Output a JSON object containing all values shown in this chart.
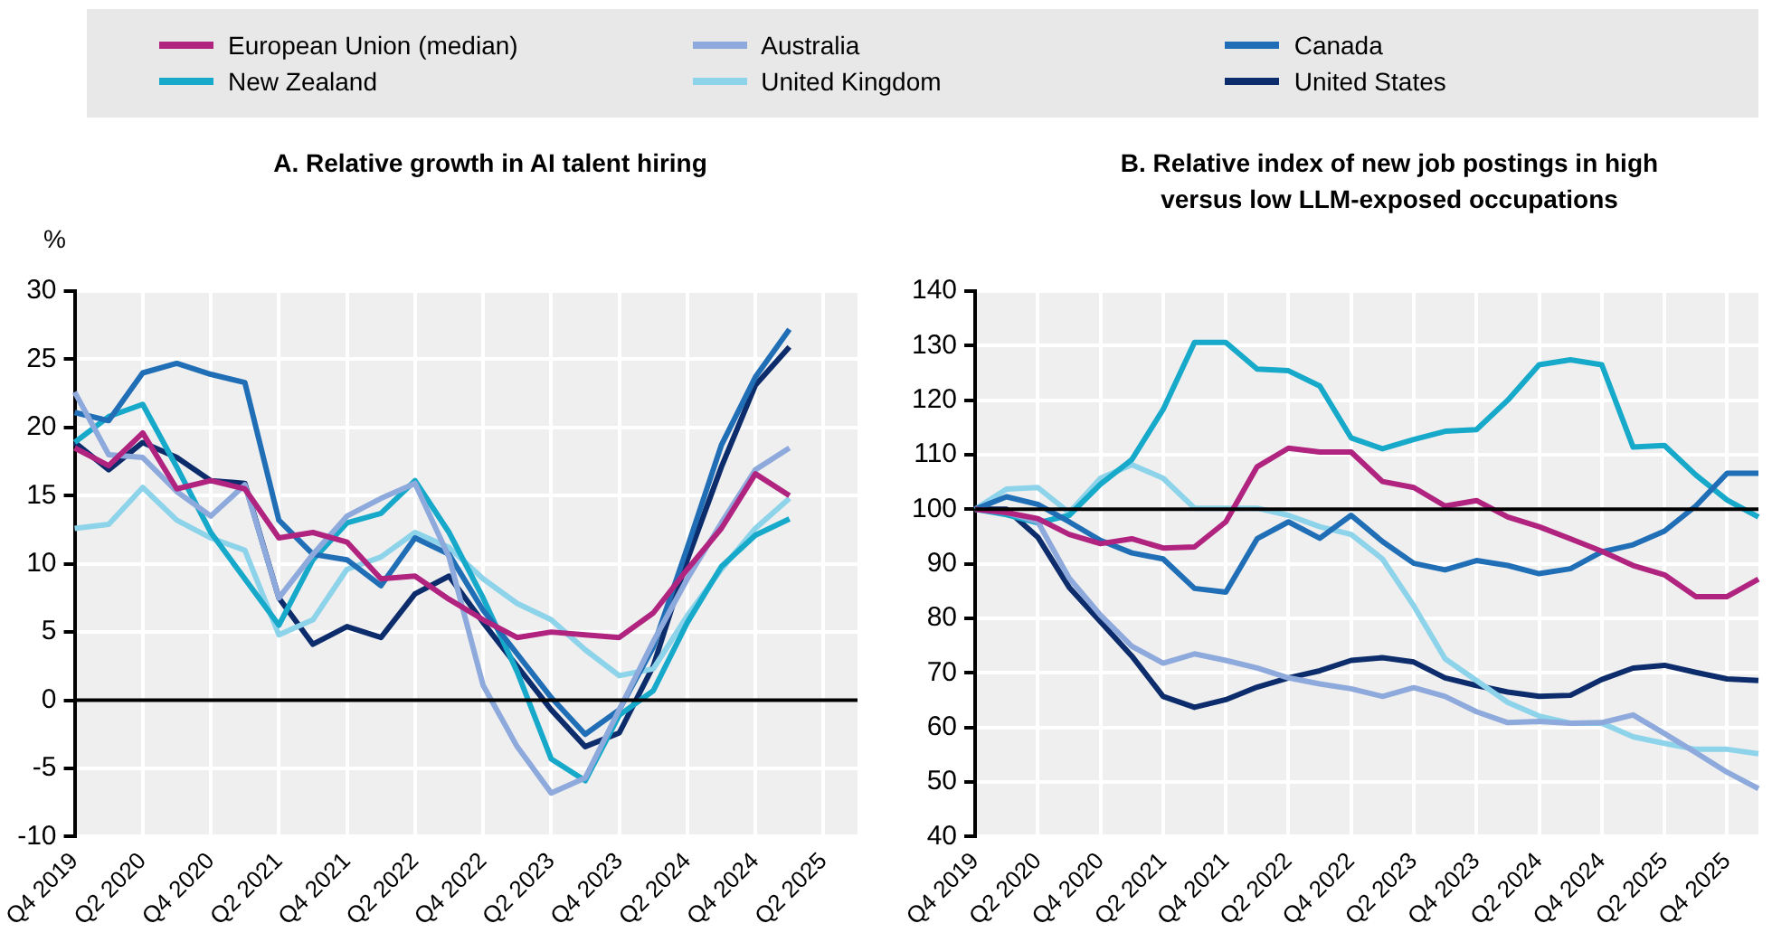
{
  "chart_data": [
    {
      "type": "line",
      "title": "A. Relative growth in AI talent hiring",
      "ylabel": "%",
      "categories": [
        "Q4 2019",
        null,
        "Q2 2020",
        null,
        "Q4 2020",
        null,
        "Q2 2021",
        null,
        "Q4 2021",
        null,
        "Q2 2022",
        null,
        "Q4 2022",
        null,
        "Q2 2023",
        null,
        "Q4 2023",
        null,
        "Q2 2024",
        null,
        "Q4 2024",
        null,
        "Q2 2025",
        null
      ],
      "series": [
        {
          "name": "European Union (median)",
          "color": "#b0237f",
          "values": [
            18.5,
            17.2,
            19.6,
            15.5,
            16.1,
            15.5,
            11.9,
            12.3,
            11.6,
            8.9,
            9.1,
            7.4,
            5.9,
            4.6,
            5.0,
            4.8,
            4.6,
            6.4,
            9.6,
            12.6,
            16.6,
            15.0,
            null,
            null
          ]
        },
        {
          "name": "Australia",
          "color": "#8ea9db",
          "values": [
            22.6,
            18.0,
            17.8,
            15.3,
            13.5,
            15.8,
            7.5,
            10.7,
            13.5,
            14.8,
            15.9,
            10.5,
            1.1,
            -3.4,
            -6.8,
            -5.7,
            -0.7,
            4.3,
            8.9,
            13.0,
            16.9,
            18.5,
            null,
            null
          ]
        },
        {
          "name": "Canada",
          "color": "#1f6eb6",
          "values": [
            21.1,
            20.5,
            24.0,
            24.7,
            23.9,
            23.3,
            13.2,
            10.7,
            10.3,
            8.4,
            11.9,
            10.7,
            6.6,
            3.4,
            0.2,
            -2.5,
            -0.7,
            3.9,
            11.2,
            18.7,
            23.7,
            27.2,
            null,
            null
          ]
        },
        {
          "name": "New Zealand",
          "color": "#17a9ca",
          "values": [
            18.9,
            20.8,
            21.7,
            17.1,
            12.3,
            8.9,
            5.5,
            10.3,
            13.0,
            13.7,
            16.1,
            12.3,
            7.5,
            2.1,
            -4.3,
            -5.9,
            -1.1,
            0.7,
            5.7,
            9.8,
            12.1,
            13.3,
            null,
            null
          ]
        },
        {
          "name": "United Kingdom",
          "color": "#8dd3ea",
          "values": [
            12.6,
            12.9,
            15.6,
            13.2,
            11.9,
            11.0,
            4.8,
            5.9,
            9.6,
            10.5,
            12.3,
            11.2,
            8.9,
            7.1,
            5.9,
            3.7,
            1.8,
            2.3,
            6.2,
            9.6,
            12.6,
            14.8,
            null,
            null
          ]
        },
        {
          "name": "United States",
          "color": "#0d2c6c",
          "values": [
            18.9,
            16.9,
            18.9,
            17.8,
            16.1,
            15.9,
            7.5,
            4.1,
            5.4,
            4.6,
            7.8,
            9.1,
            5.7,
            2.5,
            -0.7,
            -3.4,
            -2.4,
            2.5,
            10.3,
            17.1,
            23.1,
            25.9,
            null,
            null
          ]
        }
      ],
      "ylim": [
        -10,
        30
      ],
      "yticks": [
        -10,
        -5,
        0,
        5,
        10,
        15,
        20,
        25,
        30
      ],
      "grid": true,
      "legend": "top",
      "marker": "none",
      "ref_lines": [
        {
          "axis": "y",
          "value": 0,
          "color": "#000000"
        }
      ]
    },
    {
      "type": "line",
      "title": "B. Relative index of new job postings in high versus low LLM-exposed occupations",
      "categories": [
        "Q4 2019",
        null,
        "Q2 2020",
        null,
        "Q4 2020",
        null,
        "Q2 2021",
        null,
        "Q4 2021",
        null,
        "Q2 2022",
        null,
        "Q4 2022",
        null,
        "Q2 2023",
        null,
        "Q4 2023",
        null,
        "Q2 2024",
        null,
        "Q4 2024",
        null,
        "Q2 2025",
        null,
        "Q4 2025",
        null
      ],
      "series": [
        {
          "name": "European Union (median)",
          "color": "#b0237f",
          "values": [
            100,
            99.4,
            98.3,
            95.4,
            93.7,
            94.6,
            92.9,
            93.1,
            97.7,
            107.8,
            111.2,
            110.5,
            110.5,
            105.1,
            104,
            100.6,
            101.6,
            98.6,
            96.8,
            94.6,
            92.3,
            89.7,
            88,
            84,
            84,
            87.2
          ]
        },
        {
          "name": "Australia",
          "color": "#8ea9db",
          "values": [
            100,
            99.4,
            97.7,
            87.4,
            80.6,
            74.9,
            71.8,
            73.5,
            72.3,
            70.9,
            69.1,
            68,
            67.1,
            65.7,
            67.3,
            65.7,
            62.9,
            60.9,
            61.1,
            60.8,
            60.9,
            62.3,
            58.9,
            55.4,
            51.8,
            48.8
          ]
        },
        {
          "name": "Canada",
          "color": "#1f6eb6",
          "values": [
            100,
            102.3,
            100.9,
            97.7,
            94.3,
            92,
            90.9,
            85.5,
            84.8,
            94.6,
            97.7,
            94.7,
            98.9,
            94.1,
            90.1,
            88.9,
            90.6,
            89.7,
            88.2,
            89.1,
            92.2,
            93.5,
            96,
            100.6,
            106.6,
            106.6
          ]
        },
        {
          "name": "New Zealand",
          "color": "#17a9ca",
          "values": [
            100,
            99,
            97.5,
            98.9,
            104.6,
            109.1,
            118.3,
            130.6,
            130.6,
            125.7,
            125.4,
            122.6,
            113.1,
            111.1,
            112.8,
            114.3,
            114.6,
            120,
            126.5,
            127.4,
            126.5,
            111.4,
            111.7,
            106.3,
            101.7,
            98.6
          ]
        },
        {
          "name": "United Kingdom",
          "color": "#8dd3ea",
          "values": [
            100,
            103.7,
            104,
            99.4,
            105.7,
            108.2,
            105.7,
            100.2,
            100.2,
            100.2,
            98.9,
            96.8,
            95.4,
            90.9,
            82.3,
            72.6,
            68.6,
            64.6,
            62.1,
            60.8,
            60.8,
            58.3,
            57.1,
            56,
            56,
            55.2
          ]
        },
        {
          "name": "United States",
          "color": "#0d2c6c",
          "values": [
            100,
            100,
            94.9,
            85.7,
            79.4,
            73.1,
            65.7,
            63.7,
            65.1,
            67.4,
            69.1,
            70.4,
            72.3,
            72.8,
            72,
            69.1,
            67.7,
            66.5,
            65.7,
            65.9,
            68.8,
            70.9,
            71.4,
            70.1,
            68.9,
            68.6
          ]
        }
      ],
      "ylim": [
        40,
        140
      ],
      "yticks": [
        40,
        50,
        60,
        70,
        80,
        90,
        100,
        110,
        120,
        130,
        140
      ],
      "grid": true,
      "legend": "top",
      "marker": "none",
      "ref_lines": [
        {
          "axis": "y",
          "value": 100,
          "color": "#000000"
        }
      ]
    }
  ]
}
